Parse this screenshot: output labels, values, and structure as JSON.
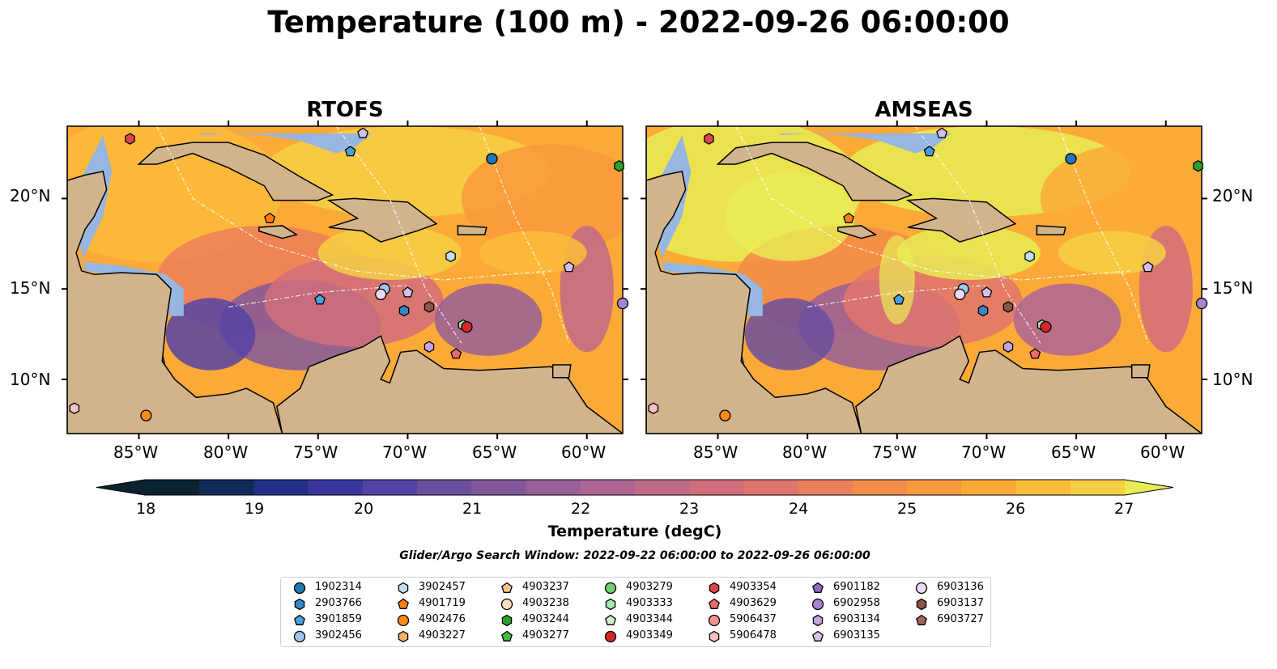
{
  "title": "Temperature (100 m) - 2022-09-26 06:00:00",
  "panels": [
    {
      "title": "RTOFS"
    },
    {
      "title": "AMSEAS"
    }
  ],
  "axes": {
    "lon_ticks": [
      "85°W",
      "80°W",
      "75°W",
      "70°W",
      "65°W",
      "60°W"
    ],
    "lat_ticks": [
      "20°N",
      "15°N",
      "10°N"
    ],
    "lon_range": [
      -89,
      -58
    ],
    "lat_range": [
      7,
      24
    ]
  },
  "colorbar": {
    "label": "Temperature (degC)",
    "ticks": [
      "18",
      "19",
      "20",
      "21",
      "22",
      "23",
      "24",
      "25",
      "26",
      "27"
    ],
    "range": [
      18,
      27
    ],
    "extend": "both",
    "colormap": "thermal",
    "colors": [
      "#0b2230",
      "#112a5a",
      "#232f87",
      "#3b35a0",
      "#5543a4",
      "#6b4f9d",
      "#82589a",
      "#985f98",
      "#ad6694",
      "#c06a8a",
      "#d16e7c",
      "#e0756c",
      "#ec7f5b",
      "#f58b49",
      "#f99a3d",
      "#fbaa38",
      "#fbbc3a",
      "#f6d044",
      "#e8ec55"
    ]
  },
  "search_window": "Glider/Argo Search Window: 2022-09-22 06:00:00 to 2022-09-26 06:00:00",
  "legend": [
    {
      "id": "1902314",
      "color": "#1f77b4",
      "marker": "circle"
    },
    {
      "id": "2903766",
      "color": "#3a86c8",
      "marker": "hexagon"
    },
    {
      "id": "3901859",
      "color": "#4a9ee0",
      "marker": "pentagon"
    },
    {
      "id": "3902456",
      "color": "#9ec8ee",
      "marker": "circle"
    },
    {
      "id": "3902457",
      "color": "#c3dff7",
      "marker": "hexagon"
    },
    {
      "id": "4901719",
      "color": "#ff7f0e",
      "marker": "pentagon"
    },
    {
      "id": "4902476",
      "color": "#ff8c1a",
      "marker": "circle"
    },
    {
      "id": "4903227",
      "color": "#ffb066",
      "marker": "hexagon"
    },
    {
      "id": "4903237",
      "color": "#ffc48a",
      "marker": "pentagon"
    },
    {
      "id": "4903238",
      "color": "#ffe0c2",
      "marker": "circle"
    },
    {
      "id": "4903244",
      "color": "#2ca02c",
      "marker": "hexagon"
    },
    {
      "id": "4903277",
      "color": "#44bb44",
      "marker": "pentagon"
    },
    {
      "id": "4903279",
      "color": "#6fd06f",
      "marker": "circle"
    },
    {
      "id": "4903333",
      "color": "#a6e8a6",
      "marker": "hexagon"
    },
    {
      "id": "4903344",
      "color": "#cff5cf",
      "marker": "pentagon"
    },
    {
      "id": "4903349",
      "color": "#d62728",
      "marker": "circle"
    },
    {
      "id": "4903354",
      "color": "#e04646",
      "marker": "hexagon"
    },
    {
      "id": "4903629",
      "color": "#eb6a6a",
      "marker": "pentagon"
    },
    {
      "id": "5906437",
      "color": "#f49393",
      "marker": "circle"
    },
    {
      "id": "5906478",
      "color": "#f9c2c2",
      "marker": "hexagon"
    },
    {
      "id": "6901182",
      "color": "#9467bd",
      "marker": "pentagon"
    },
    {
      "id": "6902958",
      "color": "#a982d0",
      "marker": "circle"
    },
    {
      "id": "6903134",
      "color": "#c0a3e0",
      "marker": "hexagon"
    },
    {
      "id": "6903135",
      "color": "#d4c0ee",
      "marker": "pentagon"
    },
    {
      "id": "6903136",
      "color": "#ead9f8",
      "marker": "circle"
    },
    {
      "id": "6903137",
      "color": "#8c564b",
      "marker": "hexagon"
    },
    {
      "id": "6903727",
      "color": "#a0685c",
      "marker": "pentagon"
    }
  ],
  "observations": [
    {
      "id": "4903354",
      "lon": -85.5,
      "lat": 23.3
    },
    {
      "id": "6903135",
      "lon": -72.5,
      "lat": 23.6
    },
    {
      "id": "3901859",
      "lon": -73.2,
      "lat": 22.6
    },
    {
      "id": "4903244",
      "lon": -58.2,
      "lat": 21.8
    },
    {
      "id": "1902314",
      "lon": -65.3,
      "lat": 22.2
    },
    {
      "id": "4901719",
      "lon": -77.7,
      "lat": 18.9
    },
    {
      "id": "3902457",
      "lon": -67.6,
      "lat": 16.8
    },
    {
      "id": "3902456",
      "lon": -71.3,
      "lat": 15.0
    },
    {
      "id": "6903136",
      "lon": -71.5,
      "lat": 14.7
    },
    {
      "id": "6903135",
      "lon": -70.0,
      "lat": 14.8
    },
    {
      "id": "3901859",
      "lon": -74.9,
      "lat": 14.4
    },
    {
      "id": "2903766",
      "lon": -70.2,
      "lat": 13.8
    },
    {
      "id": "6903137",
      "lon": -68.8,
      "lat": 14.0
    },
    {
      "id": "4903333",
      "lon": -66.9,
      "lat": 13.0
    },
    {
      "id": "4903349",
      "lon": -66.7,
      "lat": 12.9
    },
    {
      "id": "6903134",
      "lon": -68.8,
      "lat": 11.8
    },
    {
      "id": "4903629",
      "lon": -67.3,
      "lat": 11.4
    },
    {
      "id": "6902958",
      "lon": -58.0,
      "lat": 14.2
    },
    {
      "id": "6903135",
      "lon": -61.0,
      "lat": 16.2
    },
    {
      "id": "5906478",
      "lon": -88.6,
      "lat": 8.4
    },
    {
      "id": "4902476",
      "lon": -84.6,
      "lat": 8.0
    }
  ]
}
